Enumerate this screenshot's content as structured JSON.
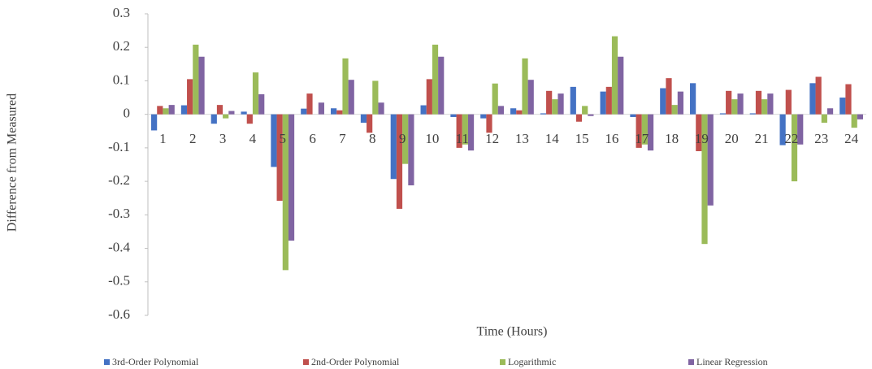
{
  "chart_data": {
    "type": "bar",
    "x_label": "Time (Hours)",
    "y_label": "Difference from Measured",
    "categories": [
      "1",
      "2",
      "3",
      "4",
      "5",
      "6",
      "7",
      "8",
      "9",
      "10",
      "11",
      "12",
      "13",
      "14",
      "15",
      "16",
      "17",
      "18",
      "19",
      "20",
      "21",
      "22",
      "23",
      "24"
    ],
    "series": [
      {
        "name": "3rd-Order Polynomial",
        "color": "#4472c4",
        "values": [
          -0.048,
          0.027,
          -0.028,
          0.008,
          -0.157,
          0.017,
          0.018,
          -0.025,
          -0.193,
          0.027,
          -0.008,
          -0.012,
          0.018,
          0.003,
          0.082,
          0.068,
          -0.008,
          0.078,
          0.093,
          0.003,
          0.003,
          -0.092,
          0.093,
          0.05
        ]
      },
      {
        "name": "2nd-Order Polynomial",
        "color": "#c0504d",
        "values": [
          0.025,
          0.105,
          0.028,
          -0.028,
          -0.258,
          0.062,
          0.012,
          -0.055,
          -0.282,
          0.105,
          -0.1,
          -0.055,
          0.012,
          0.07,
          -0.022,
          0.082,
          -0.1,
          0.108,
          -0.11,
          0.07,
          0.07,
          0.073,
          0.112,
          0.09
        ]
      },
      {
        "name": "Logarithmic",
        "color": "#9bbb59",
        "values": [
          0.018,
          0.208,
          -0.012,
          0.125,
          -0.465,
          0.0,
          0.167,
          0.1,
          -0.148,
          0.208,
          -0.09,
          0.092,
          0.167,
          0.045,
          0.025,
          0.233,
          -0.09,
          0.028,
          -0.387,
          0.045,
          0.045,
          -0.2,
          -0.025,
          -0.04
        ]
      },
      {
        "name": "Linear Regression",
        "color": "#8064a2",
        "values": [
          0.028,
          0.172,
          0.01,
          0.06,
          -0.377,
          0.035,
          0.103,
          0.035,
          -0.212,
          0.172,
          -0.108,
          0.025,
          0.103,
          0.062,
          -0.005,
          0.172,
          -0.108,
          0.068,
          -0.272,
          0.062,
          0.062,
          -0.09,
          0.018,
          -0.015
        ]
      }
    ],
    "ylim": [
      -0.6,
      0.3
    ],
    "yticks": [
      -0.6,
      -0.5,
      -0.4,
      -0.3,
      -0.2,
      -0.1,
      0,
      0.1,
      0.2,
      0.3
    ],
    "legend": "bottom"
  }
}
